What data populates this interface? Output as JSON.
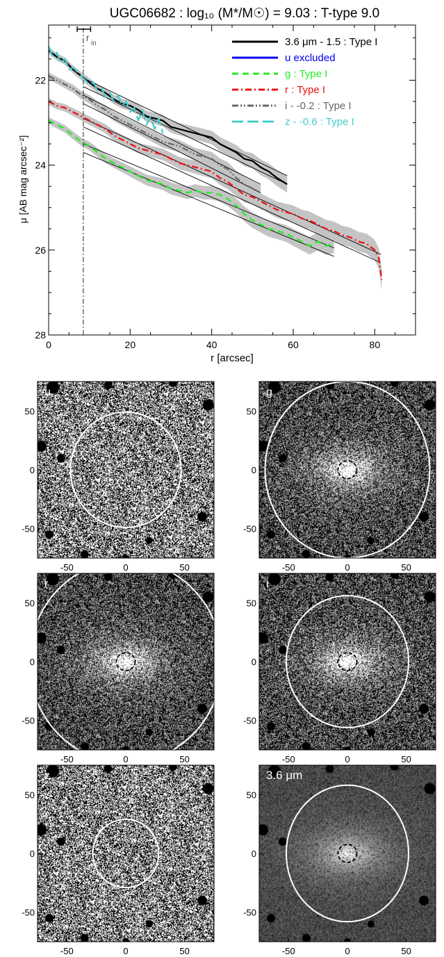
{
  "chart_data": [
    {
      "type": "line",
      "title": "UGC06682 : log₁₀ (M*/M☉) = 9.03 : T-type 9.0",
      "xlabel": "r [arcsec]",
      "ylabel": "μ [AB mag arcsec⁻²]",
      "xlim": [
        0,
        90
      ],
      "ylim": [
        28,
        20.7
      ],
      "y_inverted": true,
      "xticks": [
        0,
        20,
        40,
        60,
        80
      ],
      "yticks": [
        22,
        24,
        26,
        28
      ],
      "rin_label": "r",
      "rin_sub": "in",
      "rin_value": 8.5,
      "rin_err": [
        7,
        10.3
      ],
      "legend_position": "top-right",
      "legend": [
        {
          "label": "3.6 μm - 1.5 : Type I",
          "color": "#000000",
          "dash": "solid"
        },
        {
          "label": "u excluded",
          "color": "#0000ee",
          "dash": "solid"
        },
        {
          "label": "g : Type I",
          "color": "#22ee22",
          "dash": "dashed"
        },
        {
          "label": "r : Type I",
          "color": "#ee1111",
          "dash": "dashdot"
        },
        {
          "label": "i - -0.2 : Type I",
          "color": "#666666",
          "dash": "dashdotdot"
        },
        {
          "label": "z - -0.6 : Type I",
          "color": "#44cccc",
          "dash": "longdash"
        }
      ],
      "series": [
        {
          "name": "3.6 μm - 1.5",
          "color": "#000000",
          "dash": "solid",
          "x": [
            0,
            2,
            4,
            6,
            8,
            10,
            12,
            14,
            16,
            18,
            20,
            22,
            24,
            26,
            28,
            30,
            32,
            34,
            36,
            38,
            40,
            42,
            44,
            46,
            48,
            50,
            52,
            54,
            56,
            58.5
          ],
          "y": [
            21.3,
            21.45,
            21.55,
            21.75,
            21.9,
            22.05,
            22.2,
            22.3,
            22.45,
            22.55,
            22.6,
            22.7,
            22.85,
            22.9,
            22.95,
            23.1,
            23.15,
            23.2,
            23.25,
            23.3,
            23.35,
            23.5,
            23.6,
            23.7,
            23.85,
            23.9,
            24.05,
            24.15,
            24.3,
            24.45
          ]
        },
        {
          "name": "g",
          "color": "#22ee22",
          "dash": "dashed",
          "x": [
            0,
            2,
            4,
            6,
            8,
            10,
            12,
            14,
            16,
            18,
            20,
            22,
            24,
            26,
            28,
            30,
            32,
            34,
            36,
            38,
            40,
            42,
            44,
            46,
            48,
            50,
            52,
            54,
            56,
            58,
            60,
            62,
            64,
            66,
            68,
            70
          ],
          "y": [
            22.95,
            23.05,
            23.15,
            23.3,
            23.45,
            23.55,
            23.7,
            23.85,
            23.95,
            24.05,
            24.15,
            24.25,
            24.35,
            24.4,
            24.45,
            24.55,
            24.6,
            24.65,
            24.6,
            24.65,
            24.65,
            24.7,
            24.8,
            24.95,
            25.15,
            25.3,
            25.4,
            25.5,
            25.55,
            25.6,
            25.7,
            25.8,
            25.9,
            25.8,
            25.9,
            25.85
          ]
        },
        {
          "name": "r",
          "color": "#ee1111",
          "dash": "dashdot",
          "x": [
            0,
            2,
            4,
            6,
            8,
            10,
            12,
            14,
            16,
            18,
            20,
            22,
            24,
            26,
            28,
            30,
            32,
            34,
            36,
            38,
            40,
            42,
            44,
            46,
            48,
            50,
            52,
            54,
            56,
            58,
            60,
            62,
            64,
            66,
            68,
            70,
            72,
            74,
            76,
            78,
            80,
            81,
            81.7
          ],
          "y": [
            22.5,
            22.6,
            22.65,
            22.75,
            22.85,
            22.95,
            23.05,
            23.15,
            23.3,
            23.4,
            23.5,
            23.6,
            23.65,
            23.7,
            23.75,
            23.85,
            23.95,
            24.0,
            24.05,
            24.1,
            24.15,
            24.3,
            24.4,
            24.55,
            24.7,
            24.75,
            24.85,
            24.95,
            25.05,
            25.1,
            25.15,
            25.25,
            25.3,
            25.4,
            25.5,
            25.55,
            25.65,
            25.7,
            25.8,
            25.85,
            26.0,
            26.2,
            26.7
          ]
        },
        {
          "name": "i - -0.2",
          "color": "#666666",
          "dash": "dashdotdot",
          "x": [
            0,
            2,
            4,
            6,
            8,
            10,
            12,
            14,
            16,
            18,
            20,
            22,
            24,
            26,
            28,
            30,
            32,
            34,
            36,
            38,
            40,
            42,
            44,
            46,
            48,
            50,
            52
          ],
          "y": [
            21.9,
            22.0,
            22.1,
            22.2,
            22.35,
            22.45,
            22.6,
            22.7,
            22.85,
            22.95,
            23.05,
            23.15,
            23.25,
            23.35,
            23.45,
            23.5,
            23.55,
            23.65,
            23.75,
            23.8,
            23.85,
            24.0,
            24.1,
            24.3,
            24.45,
            24.55,
            24.65
          ]
        },
        {
          "name": "z - -0.6",
          "color": "#44cccc",
          "dash": "longdash",
          "x": [
            0,
            1,
            2,
            3,
            4,
            5,
            6,
            7,
            8,
            9,
            10,
            11,
            12,
            13,
            14,
            15,
            16,
            17,
            18,
            19,
            20,
            21,
            22,
            23,
            24,
            25,
            26,
            27,
            28
          ],
          "y": [
            21.2,
            21.45,
            21.35,
            21.6,
            21.5,
            21.75,
            21.7,
            21.8,
            21.9,
            22.0,
            22.1,
            22.05,
            22.25,
            22.2,
            22.4,
            22.3,
            22.5,
            22.35,
            22.6,
            22.5,
            22.75,
            22.65,
            22.95,
            22.7,
            23.05,
            22.85,
            23.15,
            22.9,
            23.25
          ]
        }
      ],
      "fits": [
        {
          "x": [
            8.5,
            58.5
          ],
          "y": [
            22.05,
            24.35
          ]
        },
        {
          "x": [
            8.5,
            52
          ],
          "y": [
            22.45,
            24.55
          ]
        },
        {
          "x": [
            8.5,
            81.5
          ],
          "y": [
            23.0,
            26.2
          ]
        },
        {
          "x": [
            8.5,
            70
          ],
          "y": [
            23.6,
            26.05
          ]
        }
      ]
    },
    {
      "type": "heatmap",
      "panel_label": "u",
      "xticks": [
        -50,
        0,
        50
      ],
      "yticks": [
        50,
        0,
        -50
      ],
      "outer_radius_x": 47,
      "outer_radius_y": 49,
      "inner_radius": 0,
      "background": "noise"
    },
    {
      "type": "heatmap",
      "panel_label": "g",
      "xticks": [
        -50,
        0,
        50
      ],
      "yticks": [
        50,
        0,
        -50
      ],
      "outer_radius_x": 70,
      "outer_radius_y": 75,
      "inner_radius": 8,
      "background": "galaxy"
    },
    {
      "type": "heatmap",
      "panel_label": "r",
      "xticks": [
        -50,
        0,
        50
      ],
      "yticks": [
        50,
        0,
        -50
      ],
      "outer_radius_x": 82,
      "outer_radius_y": 86,
      "inner_radius": 8,
      "background": "galaxy"
    },
    {
      "type": "heatmap",
      "panel_label": "i",
      "xticks": [
        -50,
        0,
        50
      ],
      "yticks": [
        50,
        0,
        -50
      ],
      "outer_radius_x": 52,
      "outer_radius_y": 56,
      "inner_radius": 8,
      "background": "galaxy"
    },
    {
      "type": "heatmap",
      "panel_label": "z",
      "xticks": [
        -50,
        0,
        50
      ],
      "yticks": [
        50,
        0,
        -50
      ],
      "outer_radius_x": 28,
      "outer_radius_y": 29,
      "inner_radius": 0,
      "background": "noise"
    },
    {
      "type": "heatmap",
      "panel_label": "3.6 μm",
      "xticks": [
        -50,
        0,
        50
      ],
      "yticks": [
        50,
        0,
        -50
      ],
      "outer_radius_x": 52,
      "outer_radius_y": 58,
      "inner_radius": 8,
      "background": "ir"
    }
  ]
}
